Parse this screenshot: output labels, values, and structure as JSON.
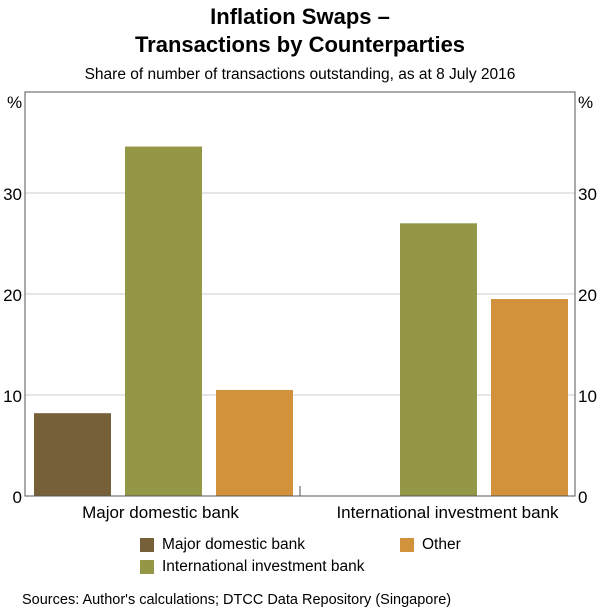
{
  "chart_data": {
    "type": "bar",
    "title": [
      "Inflation Swaps –",
      "Transactions by Counterparties"
    ],
    "subtitle": "Share of number of transactions outstanding, as at 8 July 2016",
    "ylabel_left": "%",
    "ylabel_right": "%",
    "ylim": [
      0,
      40
    ],
    "yticks": [
      0,
      10,
      20,
      30
    ],
    "grid": true,
    "categories": [
      "Major domestic bank",
      "International investment bank"
    ],
    "series": [
      {
        "name": "Major domestic bank",
        "color": "#76603a",
        "values": [
          8.2,
          0
        ]
      },
      {
        "name": "International investment bank",
        "color": "#949746",
        "values": [
          34.6,
          27.0
        ]
      },
      {
        "name": "Other",
        "color": "#d1923b",
        "values": [
          10.5,
          19.5
        ]
      }
    ],
    "legend_placement": "bottom"
  },
  "source": "Sources:   Author's calculations; DTCC Data Repository (Singapore)"
}
